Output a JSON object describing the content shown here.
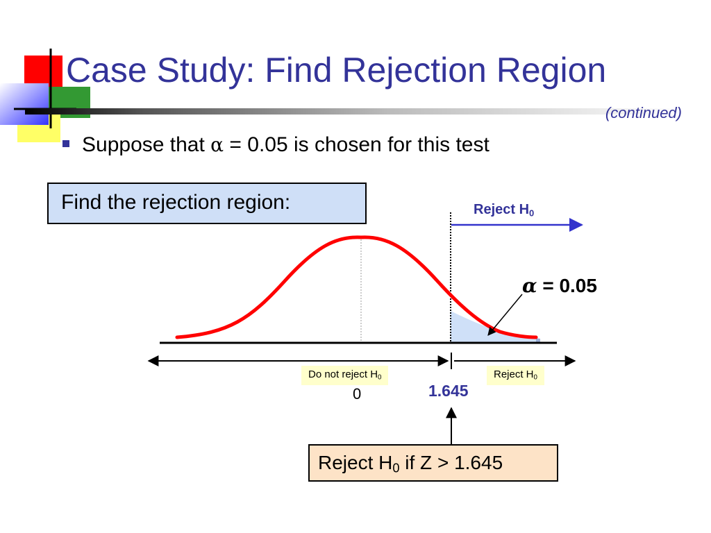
{
  "slide": {
    "title": "Case Study: Find Rejection Region",
    "subtitle": "(continued)",
    "bullet": {
      "prefix": "Suppose that",
      "symbol": "α",
      "suffix": "= 0.05 is chosen for this test"
    }
  },
  "prompt_box": {
    "text": "Find the rejection region:"
  },
  "diagram": {
    "reject_top_label": {
      "text": "Reject H",
      "subscript": "0"
    },
    "alpha_annotation": {
      "symbol": "α",
      "text": "= 0.05"
    },
    "do_not_reject_box": {
      "text": "Do not reject H",
      "subscript": "0"
    },
    "reject_box": {
      "text": "Reject H",
      "subscript": "0"
    },
    "mean_label": "0",
    "critical_label": "1.645"
  },
  "decision_box": {
    "text": "Reject H",
    "subscript": "0",
    "suffix": " if Z > 1.645"
  },
  "colors": {
    "title": "#333399",
    "curve": "#ff0000",
    "rejection_area": "#cfe0f8",
    "prompt_box_fill": "#cfdff7",
    "small_box_fill": "#ffffcc",
    "decision_box_fill": "#fde3c7",
    "arrow_blue": "#3333cc"
  }
}
